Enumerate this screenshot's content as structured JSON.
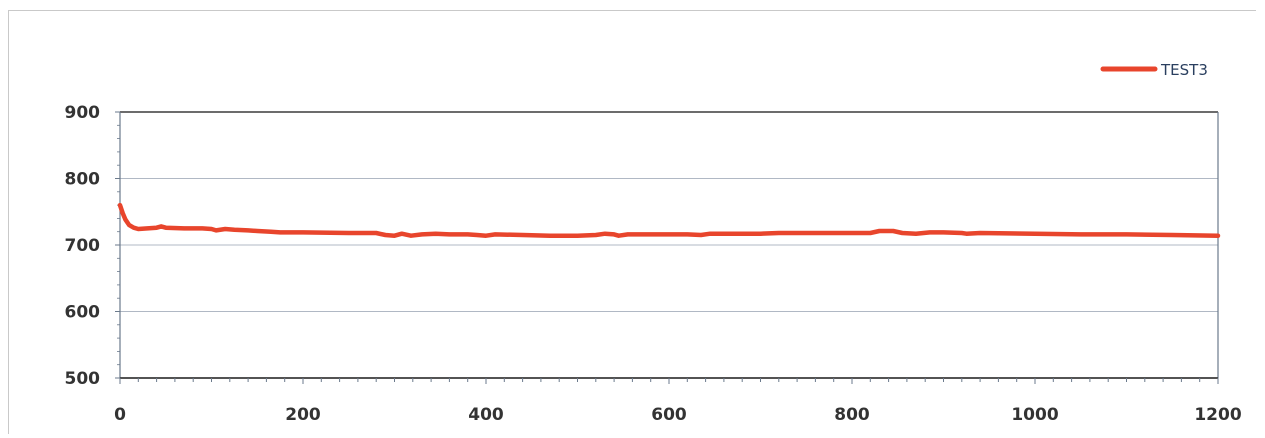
{
  "chart_data": {
    "type": "line",
    "title": "",
    "xlabel": "",
    "ylabel": "",
    "xlim": [
      0,
      1200
    ],
    "ylim": [
      500,
      900
    ],
    "x_ticks": [
      "0",
      "200",
      "400",
      "600",
      "800",
      "1000",
      "1200"
    ],
    "y_ticks": [
      "500",
      "600",
      "700",
      "800",
      "900"
    ],
    "grid": "horizontal",
    "legend": {
      "position": "top-right"
    },
    "series": [
      {
        "name": "TEST3",
        "color": "#e8452c",
        "points": [
          [
            0,
            760
          ],
          [
            3,
            748
          ],
          [
            6,
            738
          ],
          [
            10,
            730
          ],
          [
            15,
            726
          ],
          [
            20,
            724
          ],
          [
            30,
            725
          ],
          [
            40,
            726
          ],
          [
            45,
            728
          ],
          [
            50,
            726
          ],
          [
            70,
            725
          ],
          [
            90,
            725
          ],
          [
            100,
            724
          ],
          [
            105,
            722
          ],
          [
            115,
            724
          ],
          [
            125,
            723
          ],
          [
            140,
            722
          ],
          [
            150,
            721
          ],
          [
            165,
            720
          ],
          [
            175,
            719
          ],
          [
            200,
            719
          ],
          [
            250,
            718
          ],
          [
            280,
            718
          ],
          [
            290,
            715
          ],
          [
            300,
            714
          ],
          [
            308,
            717
          ],
          [
            318,
            714
          ],
          [
            330,
            716
          ],
          [
            345,
            717
          ],
          [
            360,
            716
          ],
          [
            380,
            716
          ],
          [
            390,
            715
          ],
          [
            400,
            714
          ],
          [
            410,
            716
          ],
          [
            440,
            715
          ],
          [
            470,
            714
          ],
          [
            500,
            714
          ],
          [
            520,
            715
          ],
          [
            530,
            717
          ],
          [
            540,
            716
          ],
          [
            545,
            714
          ],
          [
            555,
            716
          ],
          [
            575,
            716
          ],
          [
            600,
            716
          ],
          [
            620,
            716
          ],
          [
            635,
            715
          ],
          [
            645,
            717
          ],
          [
            680,
            717
          ],
          [
            700,
            717
          ],
          [
            720,
            718
          ],
          [
            760,
            718
          ],
          [
            800,
            718
          ],
          [
            820,
            718
          ],
          [
            830,
            721
          ],
          [
            845,
            721
          ],
          [
            855,
            718
          ],
          [
            870,
            717
          ],
          [
            885,
            719
          ],
          [
            900,
            719
          ],
          [
            920,
            718
          ],
          [
            925,
            717
          ],
          [
            940,
            718
          ],
          [
            1000,
            717
          ],
          [
            1050,
            716
          ],
          [
            1100,
            716
          ],
          [
            1150,
            715
          ],
          [
            1200,
            714
          ]
        ]
      }
    ]
  }
}
